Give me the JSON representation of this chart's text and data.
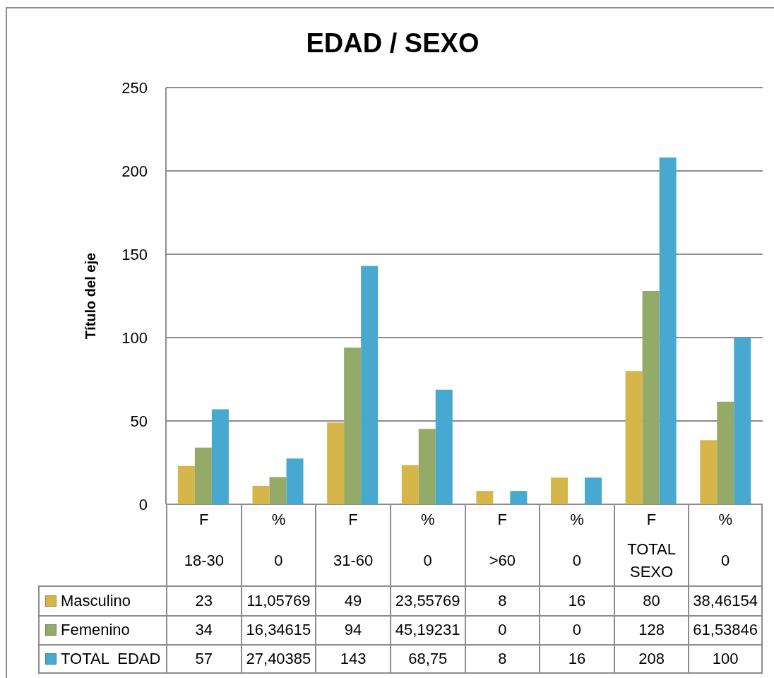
{
  "chart_data": {
    "type": "bar",
    "title": "EDAD / SEXO",
    "ylabel": "Título del eje",
    "categories": [
      "F\n18-30",
      "%\n0",
      "F\n31-60",
      "%\n0",
      "F\n>60",
      "%\n0",
      "F\nTOTAL SEXO",
      "%\n0"
    ],
    "series": [
      {
        "name": "Masculino",
        "color": "#d6b64a",
        "values": [
          23,
          11.05769,
          49,
          23.55769,
          8,
          16,
          80,
          38.46154
        ],
        "value_labels": [
          "23",
          "11,05769",
          "49",
          "23,55769",
          "8",
          "16",
          "80",
          "38,46154"
        ]
      },
      {
        "name": "Femenino",
        "color": "#93aa69",
        "values": [
          34,
          16.34615,
          94,
          45.19231,
          0,
          0,
          128,
          61.53846
        ],
        "value_labels": [
          "34",
          "16,34615",
          "94",
          "45,19231",
          "0",
          "0",
          "128",
          "61,53846"
        ]
      },
      {
        "name": "TOTAL  EDAD",
        "color": "#47a9cf",
        "values": [
          57,
          27.40385,
          143,
          68.75,
          8,
          16,
          208,
          100
        ],
        "value_labels": [
          "57",
          "27,40385",
          "143",
          "68,75",
          "8",
          "16",
          "208",
          "100"
        ]
      }
    ],
    "ylim": [
      0,
      250
    ],
    "yticks": [
      0,
      50,
      100,
      150,
      200,
      250
    ],
    "grid": "y",
    "legend": "bottom"
  }
}
